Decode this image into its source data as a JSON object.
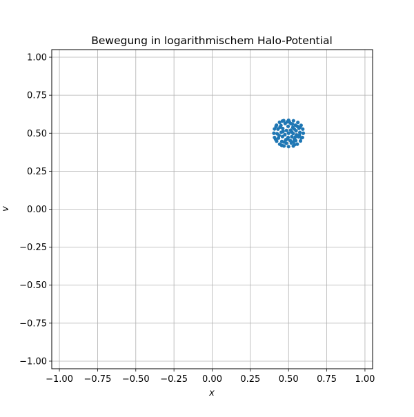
{
  "chart_data": {
    "type": "scatter",
    "title": "Bewegung in logarithmischem Halo-Potential",
    "xlabel": "x",
    "ylabel": "v",
    "xlim": [
      -1.05,
      1.05
    ],
    "ylim": [
      -1.05,
      1.05
    ],
    "xticks": [
      -1.0,
      -0.75,
      -0.5,
      -0.25,
      0.0,
      0.25,
      0.5,
      0.75,
      1.0
    ],
    "xtick_labels": [
      "−1.00",
      "−0.75",
      "−0.50",
      "−0.25",
      "0.00",
      "0.25",
      "0.50",
      "0.75",
      "1.00"
    ],
    "yticks": [
      -1.0,
      -0.75,
      -0.5,
      -0.25,
      0.0,
      0.25,
      0.5,
      0.75,
      1.0
    ],
    "ytick_labels": [
      "−1.00",
      "−0.75",
      "−0.50",
      "−0.25",
      "0.00",
      "0.25",
      "0.50",
      "0.75",
      "1.00"
    ],
    "grid": true,
    "series": [
      {
        "color": "#1f77b4",
        "points": [
          [
            0.5,
            0.585
          ],
          [
            0.532,
            0.582
          ],
          [
            0.561,
            0.571
          ],
          [
            0.582,
            0.552
          ],
          [
            0.593,
            0.527
          ],
          [
            0.596,
            0.5
          ],
          [
            0.591,
            0.472
          ],
          [
            0.578,
            0.449
          ],
          [
            0.557,
            0.428
          ],
          [
            0.531,
            0.416
          ],
          [
            0.5,
            0.412
          ],
          [
            0.47,
            0.416
          ],
          [
            0.442,
            0.428
          ],
          [
            0.422,
            0.448
          ],
          [
            0.408,
            0.472
          ],
          [
            0.404,
            0.5
          ],
          [
            0.408,
            0.528
          ],
          [
            0.421,
            0.553
          ],
          [
            0.441,
            0.572
          ],
          [
            0.468,
            0.583
          ],
          [
            0.515,
            0.563
          ],
          [
            0.545,
            0.553
          ],
          [
            0.568,
            0.532
          ],
          [
            0.574,
            0.505
          ],
          [
            0.566,
            0.476
          ],
          [
            0.547,
            0.451
          ],
          [
            0.518,
            0.436
          ],
          [
            0.486,
            0.434
          ],
          [
            0.456,
            0.446
          ],
          [
            0.434,
            0.468
          ],
          [
            0.425,
            0.497
          ],
          [
            0.431,
            0.527
          ],
          [
            0.45,
            0.551
          ],
          [
            0.478,
            0.564
          ],
          [
            0.497,
            0.545
          ],
          [
            0.528,
            0.538
          ],
          [
            0.549,
            0.516
          ],
          [
            0.552,
            0.488
          ],
          [
            0.538,
            0.462
          ],
          [
            0.511,
            0.452
          ],
          [
            0.482,
            0.457
          ],
          [
            0.46,
            0.478
          ],
          [
            0.452,
            0.506
          ],
          [
            0.462,
            0.531
          ],
          [
            0.486,
            0.518
          ],
          [
            0.514,
            0.52
          ],
          [
            0.53,
            0.498
          ],
          [
            0.521,
            0.477
          ],
          [
            0.497,
            0.472
          ],
          [
            0.476,
            0.49
          ],
          [
            0.5,
            0.5
          ],
          [
            0.505,
            0.575
          ],
          [
            0.575,
            0.54
          ],
          [
            0.585,
            0.47
          ],
          [
            0.54,
            0.425
          ],
          [
            0.455,
            0.42
          ],
          [
            0.415,
            0.46
          ],
          [
            0.418,
            0.545
          ],
          [
            0.46,
            0.58
          ],
          [
            0.525,
            0.56
          ],
          [
            0.558,
            0.545
          ],
          [
            0.571,
            0.488
          ],
          [
            0.532,
            0.444
          ],
          [
            0.47,
            0.442
          ],
          [
            0.438,
            0.485
          ],
          [
            0.444,
            0.54
          ],
          [
            0.492,
            0.575
          ],
          [
            0.537,
            0.528
          ],
          [
            0.544,
            0.475
          ],
          [
            0.492,
            0.462
          ],
          [
            0.464,
            0.512
          ],
          [
            0.521,
            0.508
          ]
        ]
      }
    ]
  }
}
